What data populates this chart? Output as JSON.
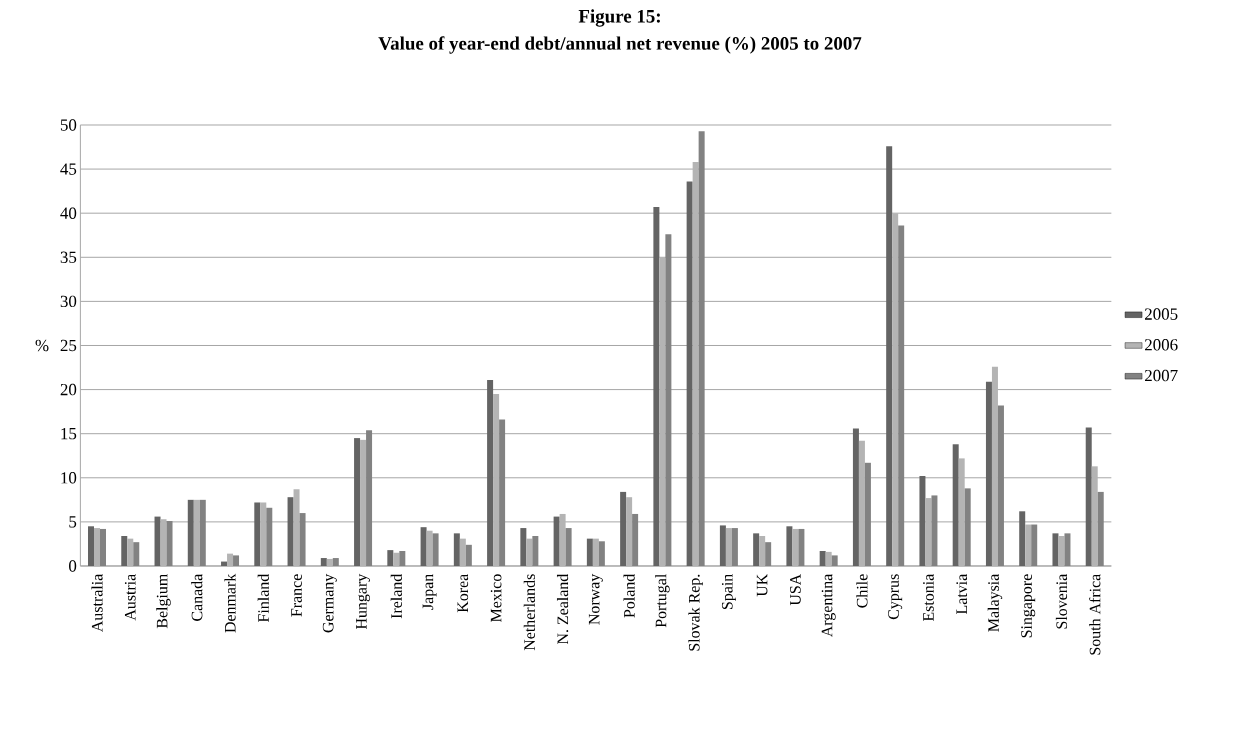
{
  "chart_data": {
    "type": "bar",
    "title": "Figure 15:",
    "subtitle": "Value of year-end debt/annual net revenue (%) 2005 to 2007",
    "ylabel": "%",
    "categories": [
      "Australia",
      "Austria",
      "Belgium",
      "Canada",
      "Denmark",
      "Finland",
      "France",
      "Germany",
      "Hungary",
      "Ireland",
      "Japan",
      "Korea",
      "Mexico",
      "Netherlands",
      "N. Zealand",
      "Norway",
      "Poland",
      "Portugal",
      "Slovak Rep.",
      "Spain",
      "UK",
      "USA",
      "Argentina",
      "Chile",
      "Cyprus",
      "Estonia",
      "Latvia",
      "Malaysia",
      "Singapore",
      "Slovenia",
      "South Africa"
    ],
    "series": [
      {
        "name": "2005",
        "color": "#646464",
        "values": [
          4.5,
          3.4,
          5.6,
          7.5,
          0.5,
          7.2,
          7.8,
          0.9,
          14.5,
          1.8,
          4.4,
          3.7,
          21.1,
          4.3,
          5.6,
          3.1,
          8.4,
          40.7,
          43.6,
          4.6,
          3.7,
          4.5,
          1.7,
          15.6,
          47.6,
          10.2,
          13.8,
          20.9,
          6.2,
          3.7,
          15.7
        ]
      },
      {
        "name": "2006",
        "color": "#b4b4b4",
        "values": [
          4.3,
          3.1,
          5.3,
          7.5,
          1.4,
          7.2,
          8.7,
          0.8,
          14.3,
          1.5,
          4.0,
          3.1,
          19.5,
          3.1,
          5.9,
          3.1,
          7.8,
          35.0,
          45.8,
          4.3,
          3.4,
          4.2,
          1.6,
          14.2,
          40.0,
          7.7,
          12.2,
          22.6,
          4.7,
          3.4,
          11.3
        ]
      },
      {
        "name": "2007",
        "color": "#828282",
        "values": [
          4.2,
          2.7,
          5.1,
          7.5,
          1.2,
          6.6,
          6.0,
          0.9,
          15.4,
          1.7,
          3.7,
          2.4,
          16.6,
          3.4,
          4.3,
          2.8,
          5.9,
          37.6,
          49.3,
          4.3,
          2.7,
          4.2,
          1.2,
          11.7,
          38.6,
          8.0,
          8.8,
          18.2,
          4.7,
          3.7,
          8.4
        ]
      }
    ],
    "ylim": [
      0,
      50
    ],
    "yticks": [
      0,
      5,
      10,
      15,
      20,
      25,
      30,
      35,
      40,
      45,
      50
    ],
    "grid": "y",
    "legend": "right"
  }
}
